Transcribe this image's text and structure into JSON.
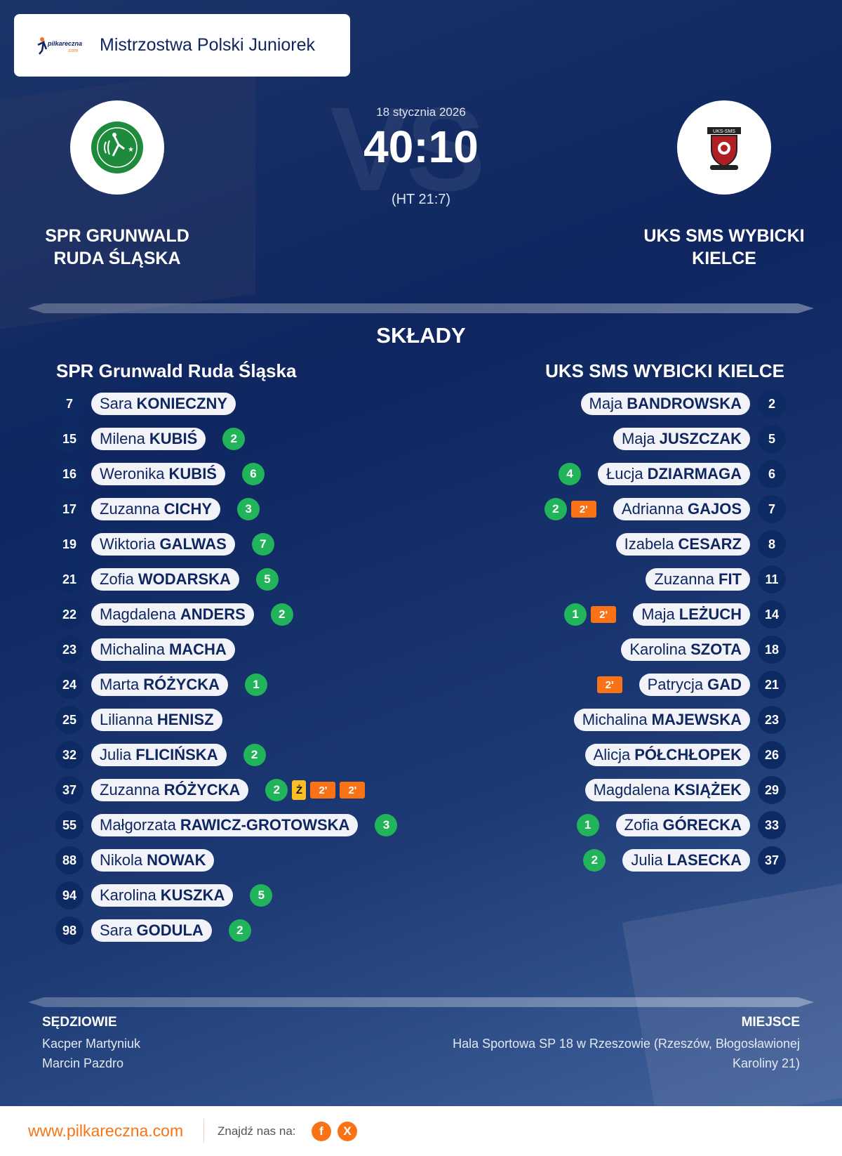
{
  "header": {
    "competition": "Mistrzostwa Polski Juniorek",
    "logo_text": "pilkareczna.com",
    "date": "18 stycznia 2026",
    "score": "40:10",
    "halftime": "(HT 21:7)",
    "vs_watermark": "VS"
  },
  "home": {
    "name_line1": "SPR GRUNWALD",
    "name_line2": "RUDA ŚLĄSKA",
    "lineup_title": "SPR Grunwald Ruda Śląska",
    "crest_color": "#1e8a3c"
  },
  "away": {
    "name_line1": "UKS SMS WYBICKI",
    "name_line2": "KIELCE",
    "lineup_title": "UKS SMS WYBICKI KIELCE",
    "crest_color": "#b01f24"
  },
  "section_title": "SKŁADY",
  "home_players": [
    {
      "no": "7",
      "first": "Sara",
      "last": "KONIECZNY",
      "goals": "",
      "events": []
    },
    {
      "no": "15",
      "first": "Milena",
      "last": "KUBIŚ",
      "goals": "2",
      "events": []
    },
    {
      "no": "16",
      "first": "Weronika",
      "last": "KUBIŚ",
      "goals": "6",
      "events": []
    },
    {
      "no": "17",
      "first": "Zuzanna",
      "last": "CICHY",
      "goals": "3",
      "events": []
    },
    {
      "no": "19",
      "first": "Wiktoria",
      "last": "GALWAS",
      "goals": "7",
      "events": []
    },
    {
      "no": "21",
      "first": "Zofia",
      "last": "WODARSKA",
      "goals": "5",
      "events": []
    },
    {
      "no": "22",
      "first": "Magdalena",
      "last": "ANDERS",
      "goals": "2",
      "events": []
    },
    {
      "no": "23",
      "first": "Michalina",
      "last": "MACHA",
      "goals": "",
      "events": []
    },
    {
      "no": "24",
      "first": "Marta",
      "last": "RÓŻYCKA",
      "goals": "1",
      "events": []
    },
    {
      "no": "25",
      "first": "Lilianna",
      "last": "HENISZ",
      "goals": "",
      "events": []
    },
    {
      "no": "32",
      "first": "Julia",
      "last": "FLICIŃSKA",
      "goals": "2",
      "events": []
    },
    {
      "no": "37",
      "first": "Zuzanna",
      "last": "RÓŻYCKA",
      "goals": "2",
      "events": [
        "Ż",
        "2'",
        "2'"
      ]
    },
    {
      "no": "55",
      "first": "Małgorzata",
      "last": "RAWICZ-GROTOWSKA",
      "goals": "3",
      "events": []
    },
    {
      "no": "88",
      "first": "Nikola",
      "last": "NOWAK",
      "goals": "",
      "events": []
    },
    {
      "no": "94",
      "first": "Karolina",
      "last": "KUSZKA",
      "goals": "5",
      "events": []
    },
    {
      "no": "98",
      "first": "Sara",
      "last": "GODULA",
      "goals": "2",
      "events": []
    }
  ],
  "away_players": [
    {
      "no": "2",
      "first": "Maja",
      "last": "BANDROWSKA",
      "goals": "",
      "events": []
    },
    {
      "no": "5",
      "first": "Maja",
      "last": "JUSZCZAK",
      "goals": "",
      "events": []
    },
    {
      "no": "6",
      "first": "Łucja",
      "last": "DZIARMAGA",
      "goals": "4",
      "events": []
    },
    {
      "no": "7",
      "first": "Adrianna",
      "last": "GAJOS",
      "goals": "2",
      "events": [
        "2'"
      ]
    },
    {
      "no": "8",
      "first": "Izabela",
      "last": "CESARZ",
      "goals": "",
      "events": []
    },
    {
      "no": "11",
      "first": "Zuzanna",
      "last": "FIT",
      "goals": "",
      "events": []
    },
    {
      "no": "14",
      "first": "Maja",
      "last": "LEŻUCH",
      "goals": "1",
      "events": [
        "2'"
      ]
    },
    {
      "no": "18",
      "first": "Karolina",
      "last": "SZOTA",
      "goals": "",
      "events": []
    },
    {
      "no": "21",
      "first": "Patrycja",
      "last": "GAD",
      "goals": "",
      "events": [
        "2'"
      ]
    },
    {
      "no": "23",
      "first": "Michalina",
      "last": "MAJEWSKA",
      "goals": "",
      "events": []
    },
    {
      "no": "26",
      "first": "Alicja",
      "last": "PÓŁCHŁOPEK",
      "goals": "",
      "events": []
    },
    {
      "no": "29",
      "first": "Magdalena",
      "last": "KSIĄŻEK",
      "goals": "",
      "events": []
    },
    {
      "no": "33",
      "first": "Zofia",
      "last": "GÓRECKA",
      "goals": "1",
      "events": []
    },
    {
      "no": "37",
      "first": "Julia",
      "last": "LASECKA",
      "goals": "2",
      "events": []
    }
  ],
  "referees": {
    "title": "SĘDZIOWIE",
    "names": [
      "Kacper Martyniuk",
      "Marcin Pazdro"
    ]
  },
  "venue": {
    "title": "MIEJSCE",
    "line1": "Hala Sportowa SP 18 w Rzeszowie (Rzeszów, Błogosławionej",
    "line2": "Karoliny 21)"
  },
  "footer": {
    "url": "www.pilkareczna.com",
    "find_us": "Znajdź nas na:",
    "facebook": "f",
    "x": "X"
  },
  "colors": {
    "goal": "#22b45a",
    "suspension": "#f97316",
    "yellow_card": "#fbbf24",
    "accent": "#f97316",
    "navy": "#0f2660"
  }
}
